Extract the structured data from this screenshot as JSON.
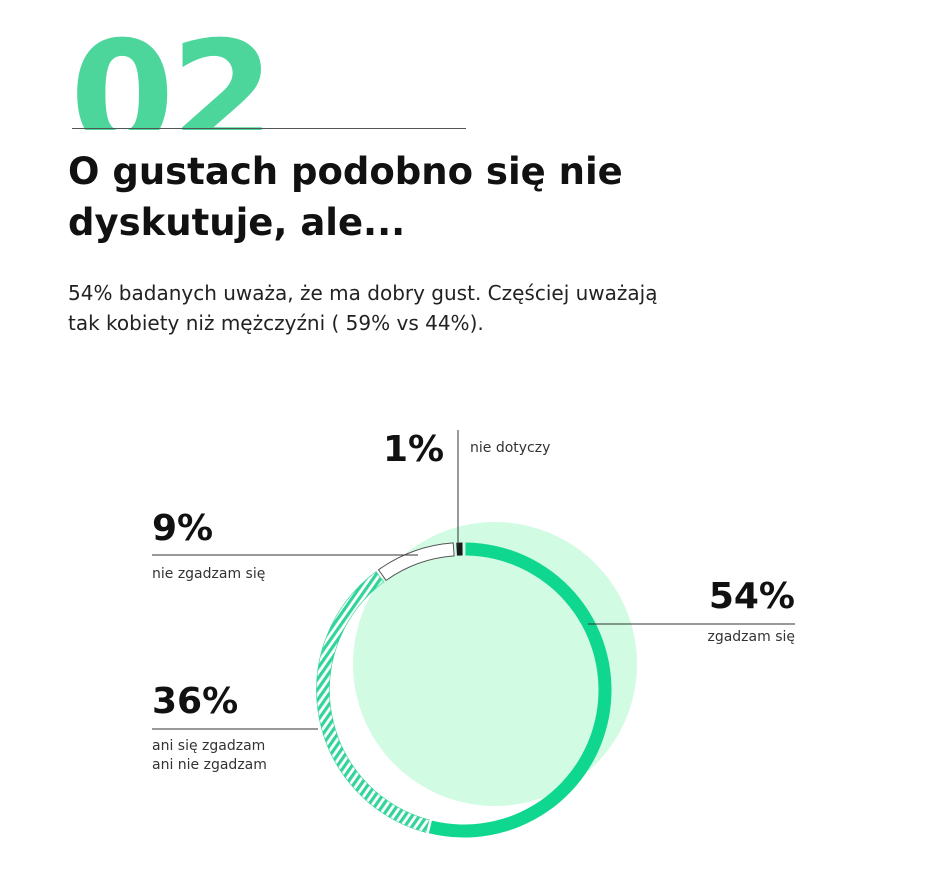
{
  "section": {
    "number": "02",
    "title": "O gustach podobno się nie dyskutuje, ale...",
    "lead": "54% badanych uważa, że ma dobry gust. Częściej uważają tak kobiety niż mężczyźni ( 59% vs 44%)."
  },
  "colors": {
    "accent": "#4dd69b",
    "ring_solid": "#10d78f",
    "ring_stripe": "#33d49a",
    "background_disc": "#d2fbe4",
    "text": "#111111",
    "marker": "#1a1a1a"
  },
  "chart_data": {
    "type": "pie",
    "style": "donut",
    "title": "",
    "series": [
      {
        "values": [
          54,
          36,
          9,
          1
        ],
        "percent_labels": [
          "54%",
          "36%",
          "9%",
          "1%"
        ],
        "category_labels": [
          "zgadzam się",
          "ani się zgadzam ani nie zgadzam",
          "nie zgadzam się",
          "nie dotyczy"
        ],
        "category_label_lines": [
          [
            "zgadzam się"
          ],
          [
            "ani się zgadzam",
            "ani nie zgadzam"
          ],
          [
            "nie zgadzam się"
          ],
          [
            "nie dotyczy"
          ]
        ],
        "fills": [
          "solid",
          "striped",
          "outline",
          "dark"
        ]
      }
    ]
  }
}
